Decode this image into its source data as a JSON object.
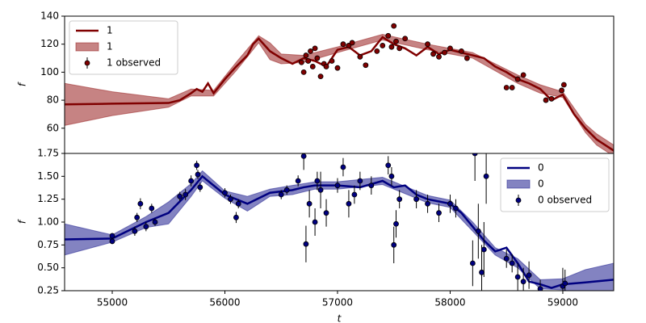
{
  "chart_data": [
    {
      "type": "line",
      "ylabel": "f",
      "xlim": [
        54577,
        59452
      ],
      "ylim": [
        42,
        140
      ],
      "yticks": [
        60,
        80,
        100,
        120,
        140
      ],
      "legend": "upper left",
      "series": [
        {
          "name": "1",
          "style": "line",
          "color": "#800000",
          "x": [
            54577,
            55000,
            55500,
            55600,
            55700,
            55750,
            55800,
            55850,
            55900,
            56000,
            56100,
            56200,
            56250,
            56300,
            56400,
            56500,
            56600,
            56700,
            56800,
            56900,
            57000,
            57100,
            57200,
            57300,
            57400,
            57500,
            57600,
            57700,
            57800,
            57900,
            58000,
            58100,
            58200,
            58300,
            58400,
            58500,
            58600,
            58700,
            58800,
            58900,
            59000,
            59100,
            59200,
            59300,
            59452
          ],
          "values": [
            77,
            77.5,
            78,
            80,
            85,
            88,
            86,
            92,
            85,
            95,
            104,
            112,
            120,
            124,
            115,
            110,
            106,
            110,
            108,
            104,
            116,
            118,
            112,
            115,
            125,
            120,
            117,
            112,
            118,
            113,
            116,
            114,
            112,
            110,
            104,
            100,
            95,
            92,
            88,
            80,
            84,
            70,
            60,
            52,
            44
          ]
        },
        {
          "name": "1",
          "style": "band",
          "color": "#a03030",
          "x": [
            54577,
            55000,
            55500,
            55700,
            55900,
            56100,
            56300,
            56400,
            56500,
            56700,
            57000,
            57400,
            57800,
            58200,
            58600,
            58800,
            59000,
            59200,
            59300,
            59452
          ],
          "lower": [
            62,
            69,
            75,
            83,
            83,
            101,
            121,
            109,
            106,
            107,
            114,
            123,
            116,
            110,
            92,
            85,
            82,
            57,
            48,
            40
          ],
          "upper": [
            92,
            86,
            81,
            88,
            87,
            107,
            126,
            121,
            113,
            112,
            118,
            127,
            120,
            114,
            98,
            91,
            86,
            63,
            56,
            48
          ]
        },
        {
          "name": "1 observed",
          "style": "errorbar",
          "color": "#800000",
          "x": [
            56680,
            56700,
            56720,
            56740,
            56760,
            56780,
            56800,
            56820,
            56850,
            56880,
            56900,
            56950,
            57000,
            57050,
            57100,
            57130,
            57200,
            57250,
            57350,
            57400,
            57450,
            57480,
            57500,
            57520,
            57550,
            57600,
            57800,
            57850,
            57900,
            57950,
            58000,
            58100,
            58150,
            58500,
            58550,
            58600,
            58650,
            58850,
            58900,
            58990,
            59010
          ],
          "values": [
            107,
            100,
            112,
            108,
            115,
            104,
            117,
            110,
            97,
            106,
            104,
            108,
            103,
            120,
            119,
            121,
            111,
            105,
            115,
            119,
            126,
            118,
            133,
            122,
            117,
            124,
            120,
            113,
            111,
            114,
            117,
            115,
            110,
            89,
            89,
            95,
            98,
            80,
            81,
            87,
            91
          ],
          "errors": [
            1.5,
            1.5,
            1.5,
            1.5,
            1.5,
            1.5,
            1.5,
            1.5,
            1.5,
            1.5,
            1.5,
            1.5,
            1.5,
            1.5,
            1.5,
            1.5,
            1.5,
            1.5,
            1.5,
            1.5,
            1.5,
            1.5,
            1.5,
            1.5,
            1.5,
            1.5,
            1.5,
            1.5,
            1.5,
            1.5,
            1.5,
            1.5,
            1.5,
            1.5,
            1.5,
            1.5,
            1.5,
            1.5,
            1.5,
            1.5,
            1.5
          ]
        }
      ]
    },
    {
      "type": "line",
      "ylabel": "f",
      "xlabel": "t",
      "xlim": [
        54577,
        59452
      ],
      "ylim": [
        0.25,
        1.75
      ],
      "xticks": [
        55000,
        56000,
        57000,
        58000,
        59000
      ],
      "yticks": [
        0.25,
        {
          "value": 0.5,
          "label": "0.50"
        },
        0.75,
        {
          "value": 1,
          "label": "1.00"
        },
        1.25,
        {
          "value": 1.5,
          "label": "1.50"
        },
        1.75
      ],
      "legend": "upper right",
      "series": [
        {
          "name": "0",
          "style": "line",
          "color": "#000080",
          "x": [
            54577,
            55000,
            55300,
            55500,
            55700,
            55800,
            56000,
            56200,
            56400,
            56600,
            56700,
            56800,
            57000,
            57200,
            57400,
            57500,
            57600,
            57700,
            57800,
            58000,
            58100,
            58200,
            58300,
            58400,
            58500,
            58600,
            58700,
            58800,
            58900,
            59000,
            59200,
            59452
          ],
          "values": [
            0.81,
            0.82,
            1.0,
            1.1,
            1.35,
            1.5,
            1.3,
            1.2,
            1.32,
            1.35,
            1.38,
            1.4,
            1.4,
            1.38,
            1.45,
            1.38,
            1.4,
            1.3,
            1.25,
            1.2,
            1.1,
            0.95,
            0.8,
            0.68,
            0.72,
            0.55,
            0.35,
            0.32,
            0.28,
            0.32,
            0.34,
            0.37
          ]
        },
        {
          "name": "0",
          "style": "band",
          "color": "#303098",
          "x": [
            54577,
            55000,
            55300,
            55500,
            55700,
            55800,
            56000,
            56200,
            56400,
            56600,
            56800,
            57000,
            57400,
            57800,
            58000,
            58200,
            58400,
            58600,
            58800,
            59000,
            59200,
            59452
          ],
          "lower": [
            0.64,
            0.78,
            0.94,
            0.98,
            1.28,
            1.45,
            1.26,
            1.12,
            1.28,
            1.3,
            1.36,
            1.36,
            1.41,
            1.21,
            1.16,
            0.9,
            0.64,
            0.5,
            0.27,
            0.26,
            0.2,
            0.2
          ],
          "upper": [
            0.98,
            0.86,
            1.06,
            1.22,
            1.42,
            1.56,
            1.34,
            1.28,
            1.36,
            1.4,
            1.44,
            1.44,
            1.49,
            1.29,
            1.24,
            1.0,
            0.72,
            0.6,
            0.37,
            0.38,
            0.48,
            0.55
          ]
        },
        {
          "name": "0 observed",
          "style": "errorbar",
          "color": "#000080",
          "x": [
            55000,
            55000,
            55200,
            55220,
            55250,
            55300,
            55350,
            55380,
            55600,
            55650,
            55700,
            55750,
            55760,
            55780,
            56000,
            56050,
            56100,
            56120,
            56500,
            56550,
            56650,
            56700,
            56720,
            56750,
            56800,
            56820,
            56850,
            56900,
            57000,
            57050,
            57100,
            57150,
            57200,
            57300,
            57450,
            57480,
            57500,
            57520,
            57550,
            57700,
            57800,
            57900,
            58000,
            58050,
            58200,
            58220,
            58250,
            58280,
            58300,
            58320,
            58500,
            58550,
            58600,
            58650,
            58700,
            58800,
            59000,
            59020
          ],
          "values": [
            0.85,
            0.79,
            0.9,
            1.05,
            1.2,
            0.95,
            1.15,
            1.0,
            1.28,
            1.3,
            1.45,
            1.62,
            1.52,
            1.38,
            1.32,
            1.25,
            1.05,
            1.2,
            1.3,
            1.35,
            1.45,
            1.72,
            0.76,
            1.2,
            1.0,
            1.45,
            1.35,
            1.1,
            1.4,
            1.6,
            1.2,
            1.3,
            1.45,
            1.4,
            1.62,
            1.5,
            0.75,
            0.98,
            1.25,
            1.25,
            1.2,
            1.1,
            1.2,
            1.15,
            0.55,
            1.75,
            0.9,
            0.45,
            0.7,
            1.5,
            0.6,
            0.55,
            0.4,
            0.35,
            0.42,
            0.27,
            0.3,
            0.33
          ],
          "errors": [
            0.03,
            0.03,
            0.05,
            0.05,
            0.06,
            0.05,
            0.05,
            0.04,
            0.05,
            0.06,
            0.06,
            0.05,
            0.05,
            0.05,
            0.05,
            0.05,
            0.06,
            0.05,
            0.05,
            0.05,
            0.06,
            0.15,
            0.2,
            0.15,
            0.15,
            0.1,
            0.2,
            0.15,
            0.08,
            0.1,
            0.15,
            0.1,
            0.1,
            0.1,
            0.1,
            0.1,
            0.2,
            0.15,
            0.1,
            0.1,
            0.1,
            0.1,
            0.1,
            0.1,
            0.25,
            0.3,
            0.3,
            0.3,
            0.3,
            0.3,
            0.1,
            0.1,
            0.15,
            0.15,
            0.15,
            0.1,
            0.2,
            0.15
          ]
        }
      ]
    }
  ]
}
